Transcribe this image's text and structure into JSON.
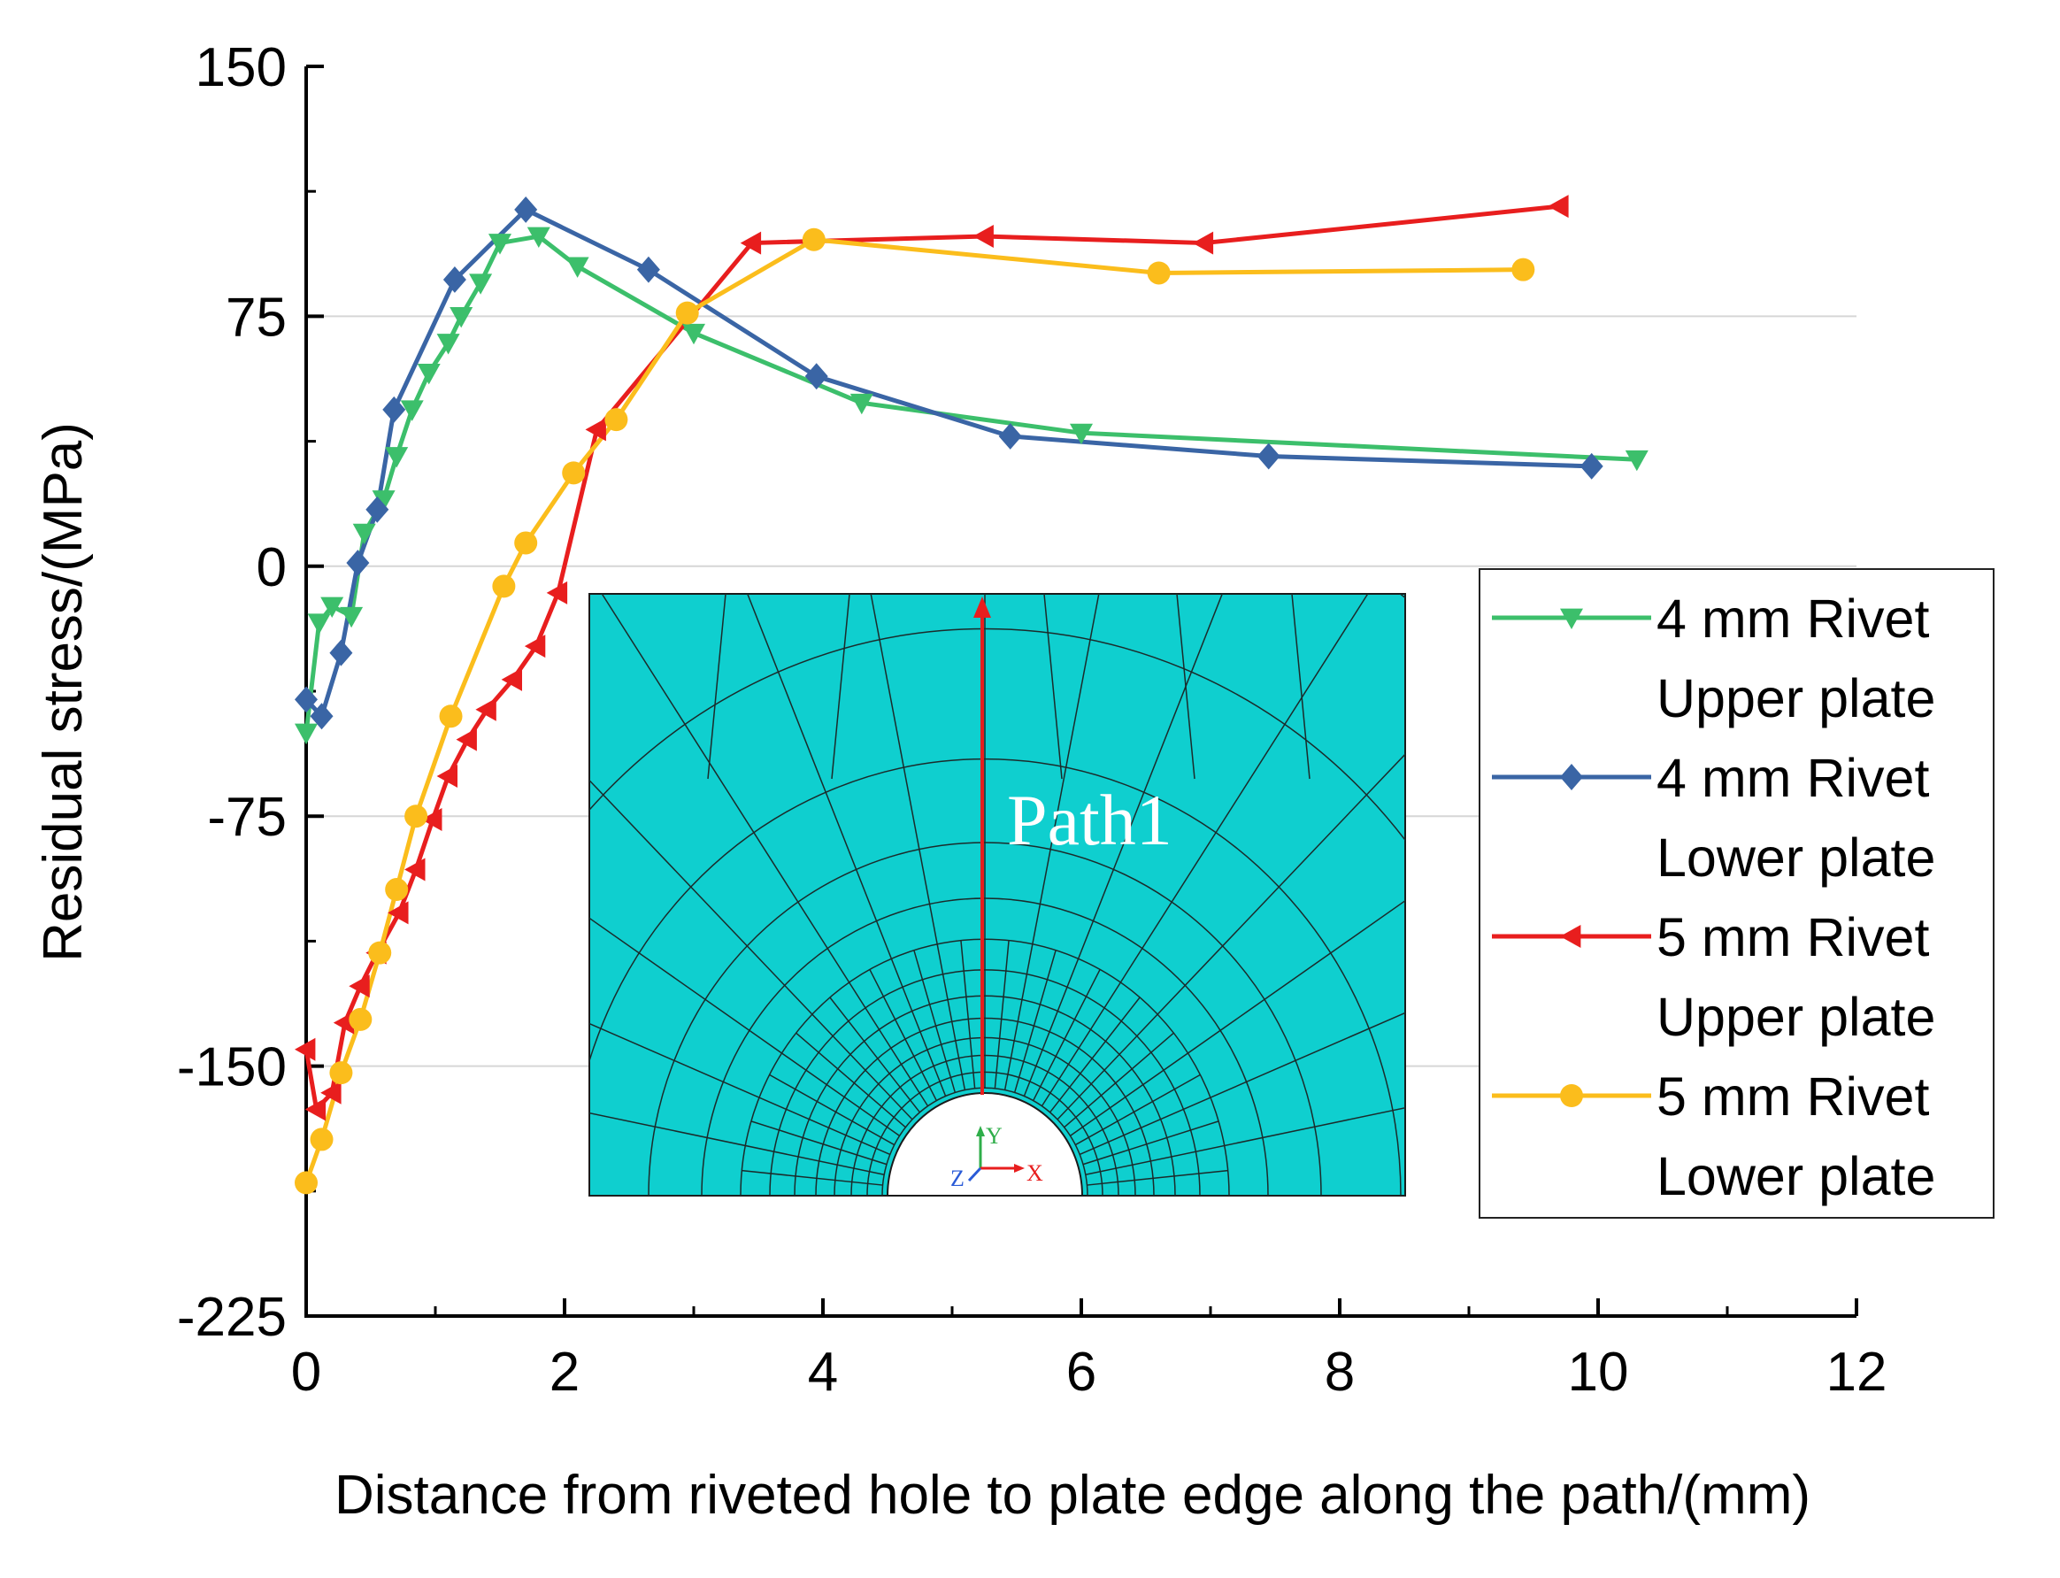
{
  "chart_data": {
    "type": "line",
    "title": "",
    "xlabel": "Distance from riveted hole to plate edge along the path/(mm)",
    "ylabel": "Residual stress/(MPa)",
    "xlim": [
      0,
      12
    ],
    "ylim": [
      -225,
      150
    ],
    "x_ticks": [
      0,
      2,
      4,
      6,
      8,
      10,
      12
    ],
    "y_ticks": [
      150,
      75,
      0,
      -75,
      -150,
      -225
    ],
    "x_tick_labels": [
      "0",
      "2",
      "4",
      "6",
      "8",
      "10",
      "12"
    ],
    "y_tick_labels": [
      "150",
      "75",
      "0",
      "-75",
      "-150",
      "-225"
    ],
    "grid": "horizontal",
    "legend_position": "right",
    "series": [
      {
        "name": "4 mm Rivet Upper plate",
        "legend_line1": "4 mm Rivet",
        "legend_line2": "Upper plate",
        "color": "#3cbf6b",
        "marker": "triangle-down",
        "x": [
          0,
          0.1,
          0.2,
          0.35,
          0.45,
          0.6,
          0.7,
          0.82,
          0.95,
          1.1,
          1.2,
          1.35,
          1.5,
          1.8,
          2.1,
          3.0,
          4.3,
          6.0,
          10.3
        ],
        "y": [
          -50,
          -17,
          -12,
          -15,
          10,
          20,
          33,
          47,
          58,
          67,
          75,
          85,
          97,
          99,
          90,
          70,
          49,
          40,
          32
        ]
      },
      {
        "name": "4 mm Rivet Lower plate",
        "legend_line1": "4 mm Rivet",
        "legend_line2": "Lower plate",
        "color": "#3a65a5",
        "marker": "diamond",
        "x": [
          0,
          0.12,
          0.27,
          0.4,
          0.55,
          0.68,
          1.15,
          1.7,
          2.65,
          3.95,
          5.45,
          7.45,
          9.95
        ],
        "y": [
          -40,
          -45,
          -26,
          1,
          17,
          47,
          86,
          107,
          89,
          57,
          39,
          33,
          30
        ]
      },
      {
        "name": "5 mm Rivet Upper plate",
        "legend_line1": "5 mm Rivet",
        "legend_line2": "Upper plate",
        "color": "#e81e1e",
        "marker": "triangle-left",
        "x": [
          0,
          0.08,
          0.2,
          0.3,
          0.42,
          0.55,
          0.72,
          0.85,
          0.98,
          1.1,
          1.25,
          1.4,
          1.6,
          1.78,
          1.95,
          2.25,
          3.45,
          5.25,
          6.95,
          9.7
        ],
        "y": [
          -145,
          -163,
          -158,
          -137,
          -126,
          -116,
          -104,
          -91,
          -76,
          -63,
          -52,
          -43,
          -34,
          -24,
          -8,
          41,
          97,
          99,
          97,
          108
        ]
      },
      {
        "name": "5 mm Rivet Lower plate",
        "legend_line1": "5 mm Rivet",
        "legend_line2": "Lower plate",
        "color": "#fbbd1c",
        "marker": "circle",
        "x": [
          0,
          0.12,
          0.27,
          0.42,
          0.57,
          0.7,
          0.85,
          1.12,
          1.53,
          1.7,
          2.07,
          2.4,
          2.95,
          3.93,
          6.6,
          9.42
        ],
        "y": [
          -185,
          -172,
          -152,
          -136,
          -116,
          -97,
          -75,
          -45,
          -6,
          7,
          28,
          44,
          76,
          98,
          88,
          89
        ]
      }
    ],
    "inset": {
      "label": "Path1",
      "axis_y": "Y",
      "axis_x": "X",
      "axis_z": "Z",
      "fill_color": "#0fcfcf",
      "path_color": "#e81e1e"
    }
  }
}
